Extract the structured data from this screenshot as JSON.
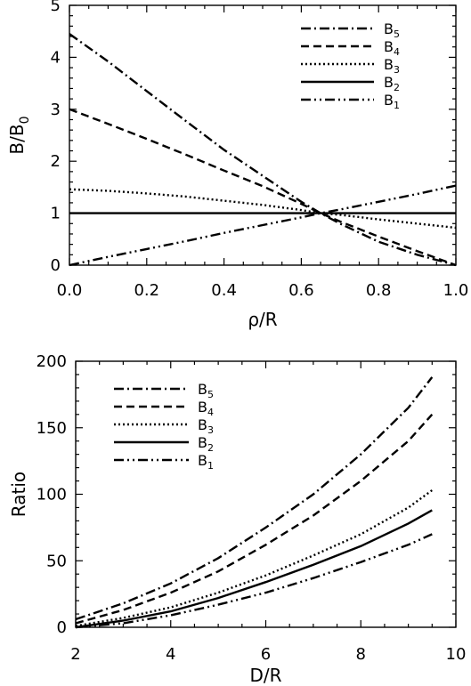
{
  "chart_data": [
    {
      "type": "line",
      "title": "",
      "xlabel": "ρ/R",
      "ylabel": "B/B₀",
      "ylabel_main": "B/B",
      "ylabel_sub": "0",
      "xlim": [
        0,
        1
      ],
      "ylim": [
        0,
        5
      ],
      "xticks": [
        "0.0",
        "0.2",
        "0.4",
        "0.6",
        "0.8",
        "1.0"
      ],
      "yticks": [
        "0",
        "1",
        "2",
        "3",
        "4",
        "5"
      ],
      "grid": false,
      "legend_position": "top-right",
      "x": [
        0.0,
        0.1,
        0.2,
        0.3,
        0.4,
        0.5,
        0.6,
        0.65,
        0.7,
        0.8,
        0.9,
        1.0
      ],
      "series": [
        {
          "name": "B5",
          "label_main": "B",
          "label_sub": "5",
          "style": "dash-dot",
          "values": [
            4.45,
            3.92,
            3.35,
            2.78,
            2.22,
            1.72,
            1.22,
            1.0,
            0.8,
            0.45,
            0.2,
            0.0
          ]
        },
        {
          "name": "B4",
          "label_main": "B",
          "label_sub": "4",
          "style": "dashed",
          "values": [
            3.0,
            2.72,
            2.43,
            2.13,
            1.82,
            1.52,
            1.18,
            1.0,
            0.84,
            0.55,
            0.27,
            0.0
          ]
        },
        {
          "name": "B3",
          "label_main": "B",
          "label_sub": "3",
          "style": "dotted",
          "values": [
            1.46,
            1.43,
            1.38,
            1.32,
            1.24,
            1.16,
            1.06,
            1.0,
            0.97,
            0.88,
            0.8,
            0.72
          ]
        },
        {
          "name": "B2",
          "label_main": "B",
          "label_sub": "2",
          "style": "solid",
          "values": [
            1.0,
            1.0,
            1.0,
            1.0,
            1.0,
            1.0,
            1.0,
            1.0,
            1.0,
            1.0,
            1.0,
            1.0
          ]
        },
        {
          "name": "B1",
          "label_main": "B",
          "label_sub": "1",
          "style": "dash-dot-dot",
          "values": [
            0.0,
            0.16,
            0.31,
            0.46,
            0.62,
            0.77,
            0.92,
            1.0,
            1.07,
            1.22,
            1.37,
            1.53
          ]
        }
      ]
    },
    {
      "type": "line",
      "title": "",
      "xlabel": "D/R",
      "ylabel": "Ratio",
      "xlim": [
        2,
        10
      ],
      "ylim": [
        0,
        200
      ],
      "xticks": [
        "2",
        "4",
        "6",
        "8",
        "10"
      ],
      "yticks": [
        "0",
        "50",
        "100",
        "150",
        "200"
      ],
      "grid": false,
      "legend_position": "top-left",
      "x": [
        2,
        3,
        4,
        5,
        6,
        7,
        8,
        9,
        9.5
      ],
      "series": [
        {
          "name": "B5",
          "label_main": "B",
          "label_sub": "5",
          "style": "dash-dot",
          "values": [
            6,
            18,
            33,
            52,
            75,
            100,
            130,
            165,
            188
          ]
        },
        {
          "name": "B4",
          "label_main": "B",
          "label_sub": "4",
          "style": "dashed",
          "values": [
            3,
            13,
            26,
            42,
            62,
            84,
            110,
            140,
            160
          ]
        },
        {
          "name": "B3",
          "label_main": "B",
          "label_sub": "3",
          "style": "dotted",
          "values": [
            1,
            7,
            15,
            26,
            39,
            54,
            70,
            90,
            103
          ]
        },
        {
          "name": "B2",
          "label_main": "B",
          "label_sub": "2",
          "style": "solid",
          "values": [
            0,
            5,
            12,
            22,
            34,
            47,
            61,
            78,
            88
          ]
        },
        {
          "name": "B1",
          "label_main": "B",
          "label_sub": "1",
          "style": "dash-dot-dot",
          "values": [
            0,
            3,
            9,
            17,
            26,
            37,
            49,
            62,
            70
          ]
        }
      ]
    }
  ]
}
